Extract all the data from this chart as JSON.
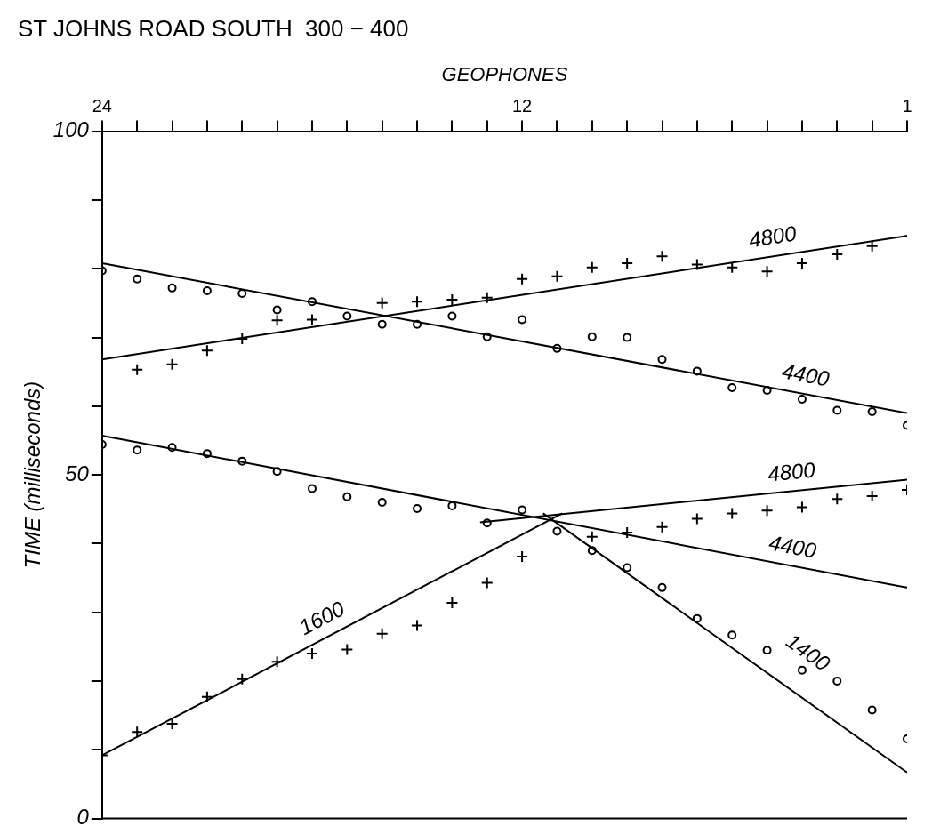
{
  "chart_data": {
    "type": "scatter",
    "title": "ST JOHNS ROAD SOUTH  300 − 400",
    "xlabel": "GEOPHONES",
    "ylabel": "TIME (milliseconds)",
    "xlim": [
      24,
      1
    ],
    "xticks": [
      24,
      {
        "value": 23,
        "label": null
      },
      {
        "value": 22,
        "label": null
      },
      {
        "value": 21,
        "label": null
      },
      {
        "value": 20,
        "label": null
      },
      {
        "value": 19,
        "label": null
      },
      {
        "value": 18,
        "label": null
      },
      {
        "value": 17,
        "label": null
      },
      {
        "value": 16,
        "label": null
      },
      {
        "value": 15,
        "label": null
      },
      {
        "value": 14,
        "label": null
      },
      {
        "value": 13,
        "label": null
      },
      12,
      {
        "value": 11,
        "label": null
      },
      {
        "value": 10,
        "label": null
      },
      {
        "value": 9,
        "label": null
      },
      {
        "value": 8,
        "label": null
      },
      {
        "value": 7,
        "label": null
      },
      {
        "value": 6,
        "label": null
      },
      {
        "value": 5,
        "label": null
      },
      {
        "value": 4,
        "label": null
      },
      {
        "value": 3,
        "label": null
      },
      {
        "value": 2,
        "label": null
      },
      1
    ],
    "ylim": [
      0,
      100
    ],
    "yticks": [
      0,
      {
        "value": 10,
        "label": null
      },
      {
        "value": 20,
        "label": null
      },
      {
        "value": 30,
        "label": null
      },
      {
        "value": 40,
        "label": null
      },
      50,
      {
        "value": 60,
        "label": null
      },
      {
        "value": 70,
        "label": null
      },
      {
        "value": 80,
        "label": null
      },
      {
        "value": 90,
        "label": null
      },
      100
    ],
    "grid": false,
    "legend": false,
    "series": [
      {
        "marker": "circle",
        "color": "#000000",
        "x": [
          24,
          23,
          22,
          21,
          20,
          19,
          18,
          17,
          16,
          15,
          14,
          13,
          12,
          11,
          10,
          9,
          8,
          7,
          6,
          5,
          4,
          3,
          2,
          1
        ],
        "values": [
          79.7,
          78.5,
          77.2,
          76.8,
          76.4,
          74.0,
          75.2,
          73.1,
          71.9,
          71.9,
          73.1,
          70.1,
          72.6,
          68.4,
          70.1,
          70.0,
          66.8,
          65.1,
          62.7,
          62.3,
          61.0,
          59.4,
          59.2,
          57.2
        ]
      },
      {
        "marker": "cross",
        "color": "#000000",
        "x": [
          23,
          22,
          21,
          20,
          19,
          18,
          16,
          15,
          14,
          13,
          12,
          11,
          10,
          9,
          8,
          7,
          6,
          5,
          4,
          3,
          2
        ],
        "values": [
          65.3,
          66.1,
          68.1,
          69.8,
          72.5,
          72.6,
          75.0,
          75.2,
          75.5,
          75.8,
          78.5,
          78.9,
          80.2,
          80.8,
          81.8,
          80.6,
          80.2,
          79.6,
          80.8,
          82.1,
          83.3
        ]
      },
      {
        "marker": "circle",
        "color": "#000000",
        "x": [
          24,
          23,
          22,
          21,
          20,
          19,
          18,
          17,
          16,
          15,
          14,
          13,
          12,
          11,
          10,
          9,
          8,
          7,
          6,
          5,
          4,
          3,
          2,
          1
        ],
        "values": [
          54.4,
          53.6,
          54.0,
          53.1,
          52.0,
          50.5,
          48.0,
          46.8,
          46.0,
          45.1,
          45.5,
          43.0,
          44.9,
          41.8,
          39.0,
          36.5,
          33.6,
          29.1,
          26.7,
          24.5,
          21.6,
          20.0,
          15.8,
          11.6
        ]
      },
      {
        "marker": "cross",
        "color": "#000000",
        "x": [
          24,
          23,
          22,
          21,
          20,
          19,
          18,
          17,
          16,
          15,
          14,
          13,
          12,
          10,
          9,
          8,
          7,
          6,
          5,
          4,
          3,
          2,
          1
        ],
        "values": [
          9.2,
          12.6,
          13.8,
          17.7,
          20.3,
          22.8,
          24.0,
          24.6,
          26.9,
          28.1,
          31.4,
          34.3,
          38.1,
          41.0,
          41.6,
          42.4,
          43.6,
          44.4,
          44.8,
          45.3,
          46.5,
          46.9,
          47.8
        ]
      },
      {
        "type": "line",
        "marker": "none",
        "color": "#000000",
        "x": [
          24,
          1
        ],
        "values": [
          80.8,
          59.0
        ]
      },
      {
        "type": "line",
        "marker": "none",
        "color": "#000000",
        "x": [
          24,
          1
        ],
        "values": [
          66.8,
          84.8
        ]
      },
      {
        "type": "line",
        "marker": "none",
        "color": "#000000",
        "x": [
          24,
          1
        ],
        "values": [
          55.7,
          33.6
        ]
      },
      {
        "type": "line",
        "marker": "none",
        "color": "#000000",
        "x": [
          13.2,
          1
        ],
        "values": [
          43.1,
          49.3
        ]
      },
      {
        "type": "line",
        "marker": "none",
        "color": "#000000",
        "x": [
          24,
          10.85
        ],
        "values": [
          9.2,
          44.4
        ]
      },
      {
        "type": "line",
        "marker": "none",
        "color": "#000000",
        "x": [
          11.4,
          1
        ],
        "values": [
          44.4,
          6.7
        ]
      }
    ],
    "annotations": [
      {
        "text": "4800",
        "x": 4.76,
        "y": 81.9
      },
      {
        "text": "4400",
        "x": 4.0,
        "y": 61.8
      },
      {
        "text": "4800",
        "x": 4.25,
        "y": 47.65
      },
      {
        "text": "4400",
        "x": 4.37,
        "y": 36.8
      },
      {
        "text": "1600",
        "x": 17.47,
        "y": 26.7
      },
      {
        "text": "1400",
        "x": 4.5,
        "y": 19.4
      }
    ]
  }
}
